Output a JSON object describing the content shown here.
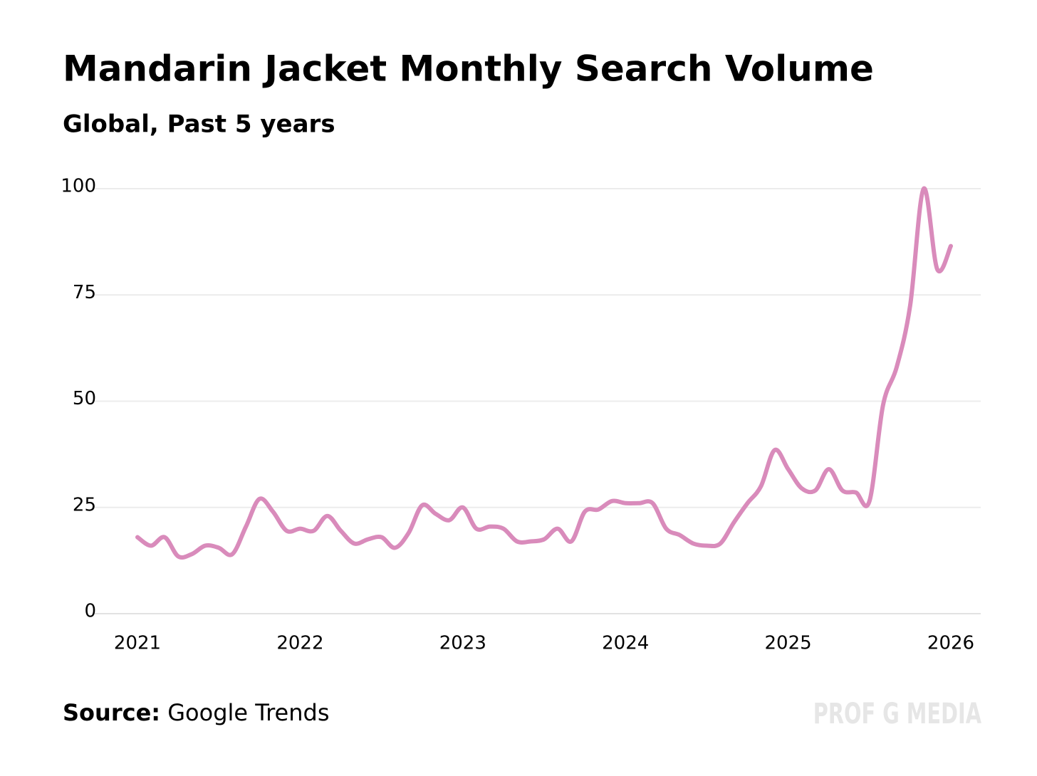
{
  "chart_data": {
    "type": "line",
    "title": "Mandarin Jacket Monthly Search Volume",
    "subtitle": "Global, Past 5 years",
    "source_label": "Source:",
    "source": "Google Trends",
    "watermark": "PROF G MEDIA",
    "x": [
      2021,
      2021.083,
      2021.167,
      2021.25,
      2021.333,
      2021.417,
      2021.5,
      2021.583,
      2021.667,
      2021.75,
      2021.833,
      2021.917,
      2022,
      2022.083,
      2022.167,
      2022.25,
      2022.333,
      2022.417,
      2022.5,
      2022.583,
      2022.667,
      2022.75,
      2022.833,
      2022.917,
      2023,
      2023.083,
      2023.167,
      2023.25,
      2023.333,
      2023.417,
      2023.5,
      2023.583,
      2023.667,
      2023.75,
      2023.833,
      2023.917,
      2024,
      2024.083,
      2024.167,
      2024.25,
      2024.333,
      2024.417,
      2024.5,
      2024.583,
      2024.667,
      2024.75,
      2024.833,
      2024.917,
      2025,
      2025.083,
      2025.167,
      2025.25,
      2025.333,
      2025.417,
      2025.5,
      2025.583,
      2025.667,
      2025.75,
      2025.833,
      2025.917,
      2026
    ],
    "series": [
      {
        "name": "Mandarin Jacket",
        "color": "#d98bbb",
        "values": [
          18,
          16,
          18,
          13.5,
          14,
          16,
          15.5,
          14,
          20.5,
          27,
          24,
          19.5,
          20,
          19.5,
          23,
          19.5,
          16.5,
          17.5,
          18,
          15.5,
          19,
          25.5,
          23.5,
          22,
          25,
          20,
          20.5,
          20,
          17,
          17,
          17.5,
          20,
          17,
          24,
          24.5,
          26.5,
          26,
          26,
          26,
          20,
          18.5,
          16.5,
          16,
          16.5,
          21.5,
          26,
          30,
          38.5,
          34,
          29.5,
          29,
          34,
          29,
          28.5,
          26.5,
          49,
          58,
          72.5,
          100,
          81,
          86.5
        ]
      }
    ],
    "xlim": [
      2021,
      2026
    ],
    "xticks": [
      2021,
      2022,
      2023,
      2024,
      2025,
      2026
    ],
    "ylim": [
      0,
      100
    ],
    "yticks": [
      0,
      25,
      50,
      75,
      100
    ],
    "grid": true
  }
}
